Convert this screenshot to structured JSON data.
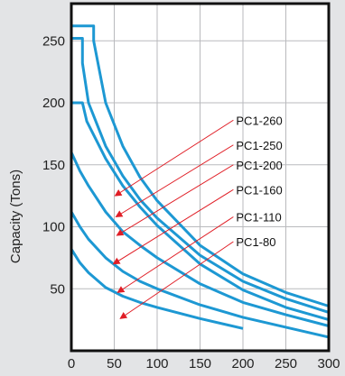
{
  "chart_data": {
    "type": "line",
    "title": "",
    "xlabel": "",
    "ylabel": "Capacity (Tons)",
    "xlim": [
      0,
      300
    ],
    "ylim": [
      0,
      280
    ],
    "grid": true,
    "x_ticks": [
      0,
      50,
      100,
      150,
      200,
      250,
      300
    ],
    "y_ticks": [
      50,
      100,
      150,
      200,
      250
    ],
    "colors": {
      "curve": "#1d98d3",
      "annotation": "#e01e26",
      "grid": "#b9babd",
      "axis": "#111111"
    },
    "series": [
      {
        "name": "PC1-260",
        "points": [
          [
            0,
            262
          ],
          [
            26,
            262
          ],
          [
            26,
            250
          ],
          [
            40,
            200
          ],
          [
            60,
            165
          ],
          [
            80,
            140
          ],
          [
            100,
            121
          ],
          [
            150,
            85
          ],
          [
            200,
            62
          ],
          [
            250,
            47
          ],
          [
            300,
            36
          ]
        ]
      },
      {
        "name": "PC1-250",
        "points": [
          [
            0,
            252
          ],
          [
            13,
            252
          ],
          [
            13,
            232
          ],
          [
            20,
            200
          ],
          [
            40,
            165
          ],
          [
            60,
            141
          ],
          [
            80,
            122
          ],
          [
            100,
            107
          ],
          [
            150,
            77
          ],
          [
            200,
            56
          ],
          [
            250,
            42
          ],
          [
            300,
            31
          ]
        ]
      },
      {
        "name": "PC1-200",
        "points": [
          [
            0,
            200
          ],
          [
            13,
            200
          ],
          [
            18,
            185
          ],
          [
            40,
            155
          ],
          [
            60,
            133
          ],
          [
            80,
            116
          ],
          [
            100,
            101
          ],
          [
            150,
            70
          ],
          [
            200,
            49
          ],
          [
            250,
            35
          ],
          [
            300,
            25
          ]
        ]
      },
      {
        "name": "PC1-160",
        "points": [
          [
            0,
            160
          ],
          [
            10,
            145
          ],
          [
            20,
            133
          ],
          [
            40,
            112
          ],
          [
            60,
            96
          ],
          [
            80,
            85
          ],
          [
            100,
            75
          ],
          [
            150,
            54
          ],
          [
            200,
            39
          ],
          [
            250,
            29
          ],
          [
            300,
            20
          ]
        ]
      },
      {
        "name": "PC1-110",
        "points": [
          [
            0,
            112
          ],
          [
            10,
            100
          ],
          [
            20,
            90
          ],
          [
            40,
            75
          ],
          [
            60,
            64
          ],
          [
            80,
            56
          ],
          [
            100,
            50
          ],
          [
            150,
            37
          ],
          [
            200,
            27
          ],
          [
            250,
            19
          ],
          [
            300,
            11
          ]
        ]
      },
      {
        "name": "PC1-80",
        "points": [
          [
            0,
            82
          ],
          [
            10,
            71
          ],
          [
            20,
            63
          ],
          [
            40,
            51
          ],
          [
            60,
            44
          ],
          [
            80,
            39
          ],
          [
            100,
            35
          ],
          [
            150,
            26
          ],
          [
            200,
            18
          ]
        ]
      }
    ],
    "annotations": [
      {
        "text": "PC1-260",
        "label_at": [
          192,
          186
        ],
        "arrow_to": [
          51,
          125
        ]
      },
      {
        "text": "PC1-250",
        "label_at": [
          192,
          166
        ],
        "arrow_to": [
          52,
          108
        ]
      },
      {
        "text": "PC1-200",
        "label_at": [
          192,
          150
        ],
        "arrow_to": [
          53,
          93
        ]
      },
      {
        "text": "PC1-160",
        "label_at": [
          192,
          130
        ],
        "arrow_to": [
          49,
          70
        ]
      },
      {
        "text": "PC1-110",
        "label_at": [
          192,
          108
        ],
        "arrow_to": [
          54,
          47
        ]
      },
      {
        "text": "PC1-80",
        "label_at": [
          192,
          88
        ],
        "arrow_to": [
          57,
          26
        ]
      }
    ]
  }
}
